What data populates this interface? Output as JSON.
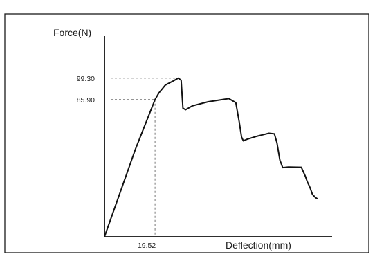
{
  "chart_data": {
    "type": "line",
    "title": "",
    "xlabel": "Deflection(mm)",
    "ylabel": "Force(N)",
    "ylim": [
      0,
      130
    ],
    "xlim": [
      0,
      82
    ],
    "grid": false,
    "annotated_points": {
      "peak_force": "99.30",
      "yield_force": "85.90",
      "yield_deflection": "19.52"
    },
    "series": [
      {
        "x": [
          0,
          12,
          19.52,
          21,
          23.5,
          26.5,
          28.5,
          29.6,
          30.3,
          31.3,
          34,
          40,
          48,
          50.7,
          52,
          52.9,
          53.6,
          55,
          59,
          63.5,
          65.6,
          66.6,
          67.7,
          68.8,
          71,
          76,
          77.5,
          78.3,
          79.3,
          80.3,
          81.5,
          82
        ],
        "y": [
          0,
          55,
          85.9,
          90,
          95,
          97.5,
          99.3,
          98,
          80.5,
          79.5,
          82,
          84.5,
          86.5,
          84,
          72,
          62.5,
          60,
          61,
          63,
          64.8,
          64.4,
          58.8,
          48,
          43.3,
          43.7,
          43.5,
          38,
          34.5,
          31,
          26.5,
          24.5,
          24
        ]
      }
    ]
  }
}
